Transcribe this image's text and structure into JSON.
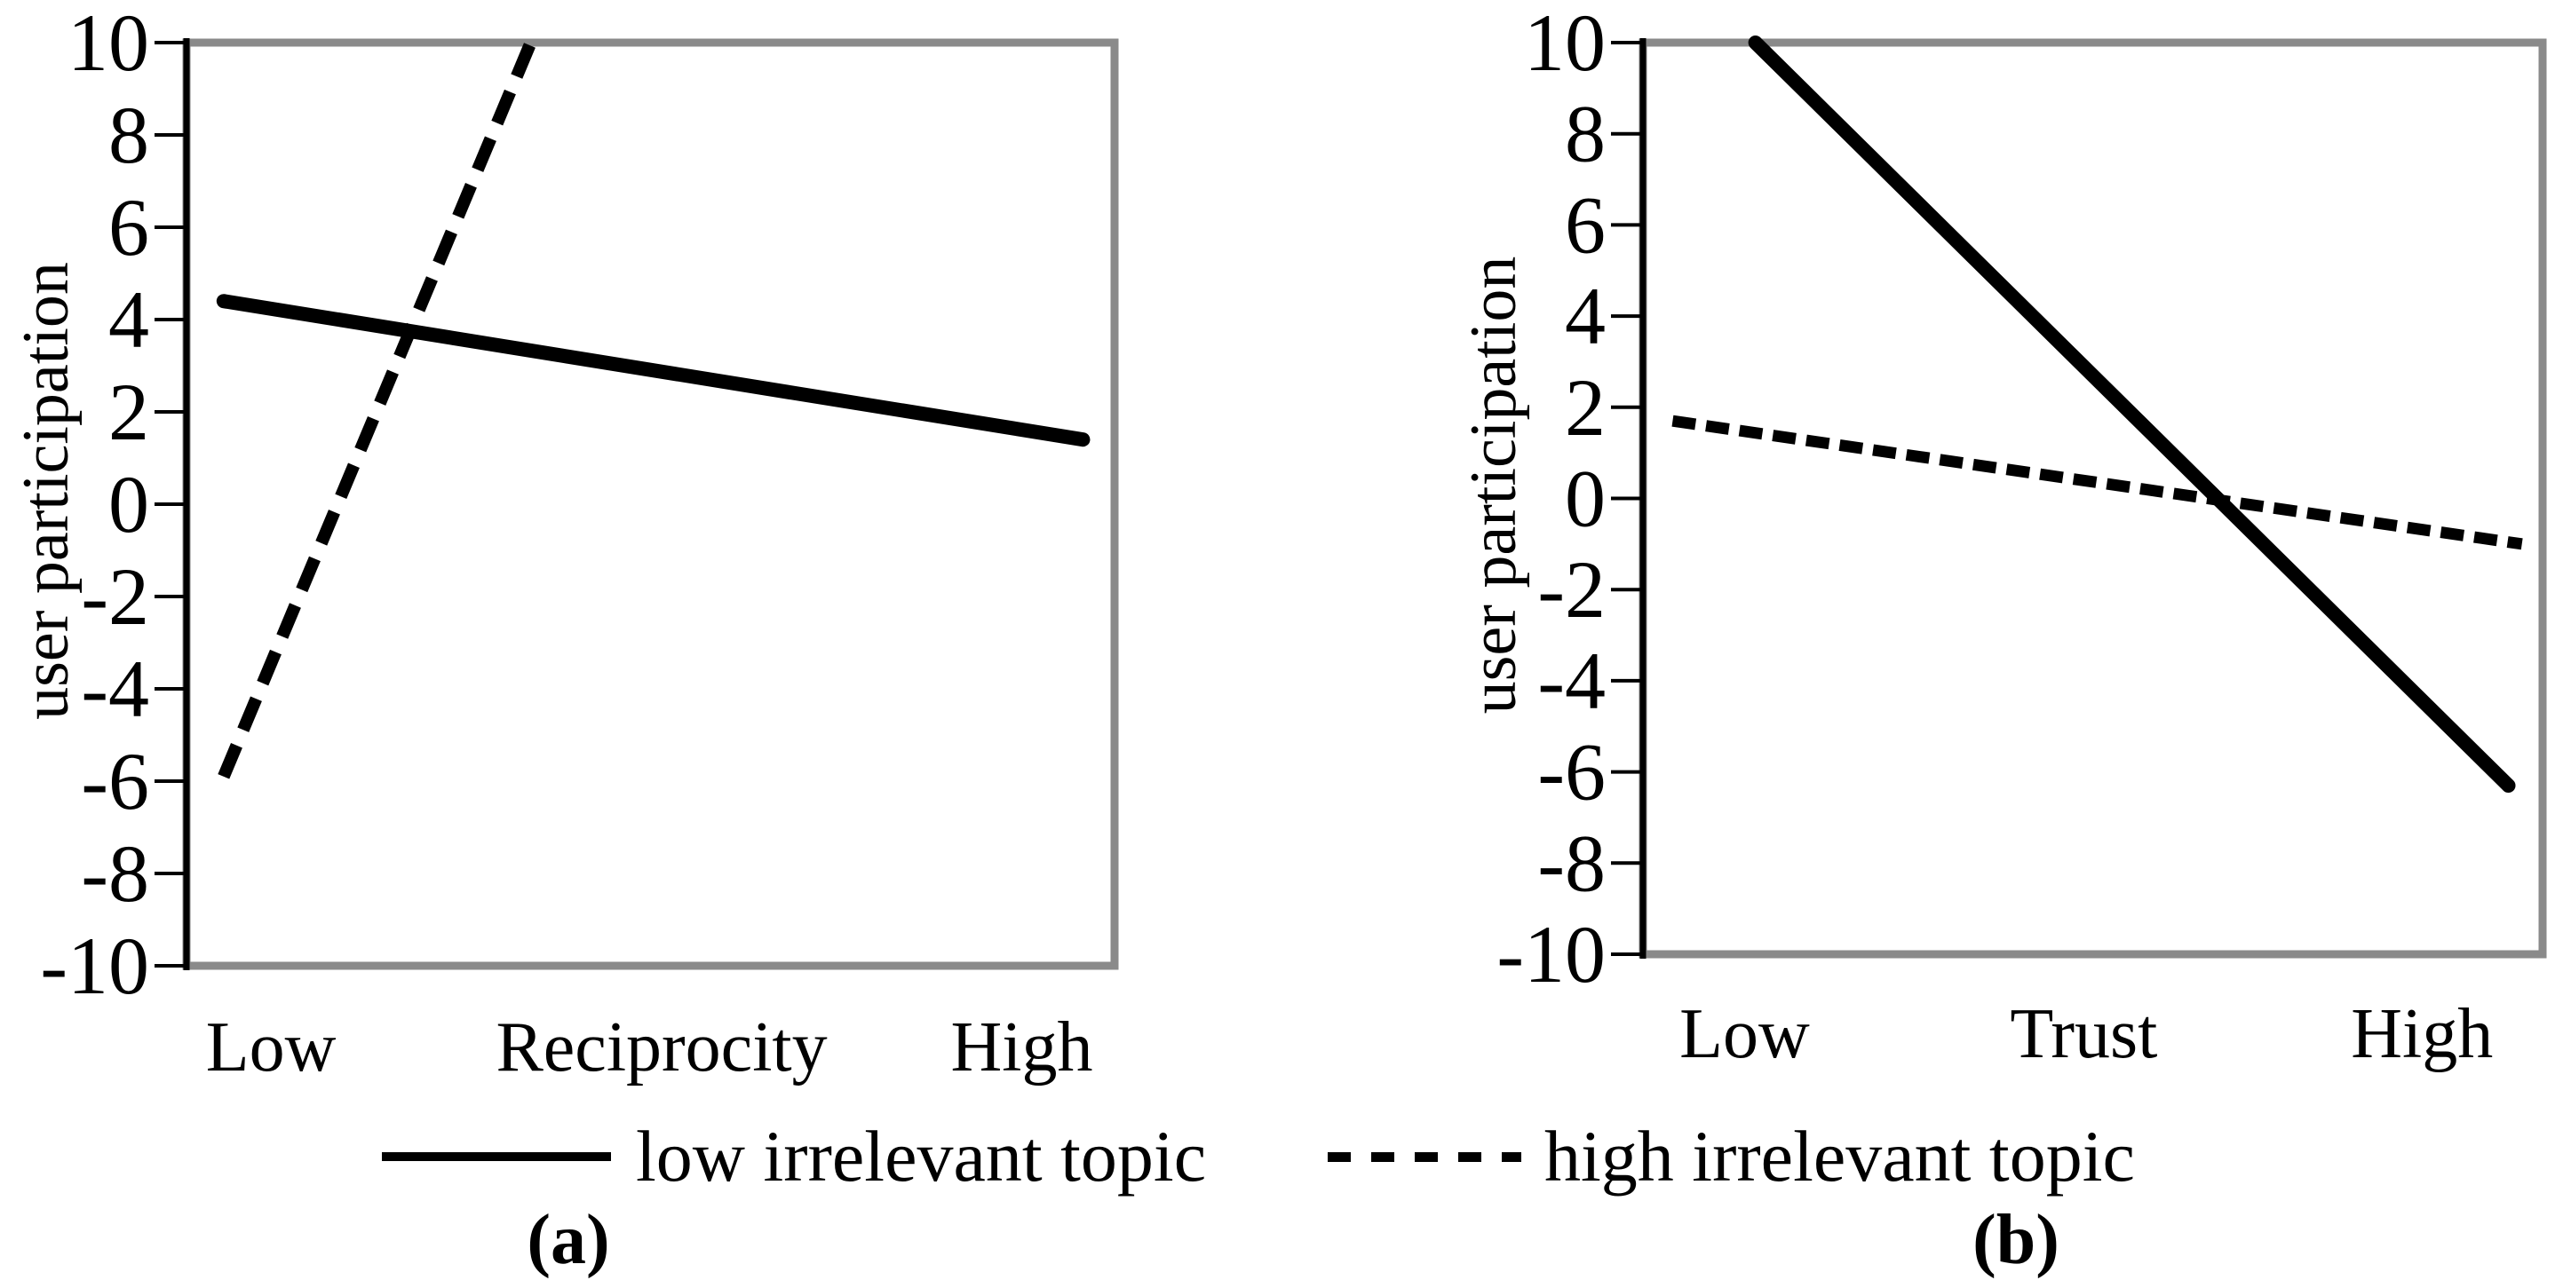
{
  "figure": {
    "background": "#ffffff",
    "line_color": "#000000",
    "plot_border_color": "#8a8a8a",
    "captions": {
      "a": "(a)",
      "b": "(b)"
    }
  },
  "legend": {
    "position": "bottom-center",
    "items": [
      {
        "label": "low irrelevant topic",
        "style": "solid"
      },
      {
        "label": "high irrelevant topic",
        "style": "dashed"
      }
    ]
  },
  "chart_data": [
    {
      "type": "line",
      "panel": "a",
      "ylabel": "user participation",
      "ylim": [
        -10,
        10
      ],
      "yticks": [
        10,
        8,
        6,
        4,
        2,
        0,
        -2,
        -4,
        -6,
        -8,
        -10
      ],
      "categories": [
        "Low",
        "Reciprocity",
        "High"
      ],
      "category_positions": [
        0.091,
        0.512,
        0.9
      ],
      "grid": false,
      "series": [
        {
          "name": "low irrelevant topic",
          "style": "solid",
          "segment": [
            {
              "xfrac": 0.04,
              "y": 4.4
            },
            {
              "xfrac": 0.966,
              "y": 1.4
            }
          ],
          "values_at_ends": {
            "Low": 4.4,
            "High": 1.4
          }
        },
        {
          "name": "high irrelevant topic",
          "style": "dashed",
          "segment": [
            {
              "xfrac": 0.04,
              "y": -5.9
            },
            {
              "xfrac": 0.371,
              "y": 10.0
            }
          ],
          "values_at_ends": {
            "Low": -5.9,
            "High": "off-chart (line exits top of plot)"
          },
          "note": "rises steeply and exits the top of the plot before the Reciprocity midpoint"
        }
      ]
    },
    {
      "type": "line",
      "panel": "b",
      "ylabel": "user participation",
      "ylim": [
        -10,
        10
      ],
      "yticks": [
        10,
        8,
        6,
        4,
        2,
        0,
        -2,
        -4,
        -6,
        -8,
        -10
      ],
      "categories": [
        "Low",
        "Trust",
        "High"
      ],
      "category_positions": [
        0.113,
        0.49,
        0.866
      ],
      "grid": false,
      "series": [
        {
          "name": "low irrelevant topic",
          "style": "solid",
          "segment": [
            {
              "xfrac": 0.125,
              "y": 10.0
            },
            {
              "xfrac": 0.962,
              "y": -6.3
            }
          ],
          "values_at_ends": {
            "Low": "off-chart (line enters from top of plot)",
            "High": -6.3
          },
          "note": "enters from the top border left of center and falls steeply"
        },
        {
          "name": "high irrelevant topic",
          "style": "dashed",
          "segment": [
            {
              "xfrac": 0.033,
              "y": 1.7
            },
            {
              "xfrac": 0.977,
              "y": -1.0
            }
          ],
          "values_at_ends": {
            "Low": 1.7,
            "High": -1.0
          }
        }
      ]
    }
  ]
}
